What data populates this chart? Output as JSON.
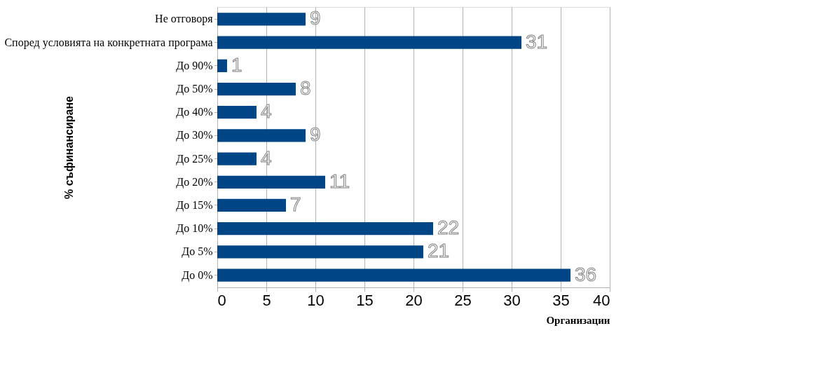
{
  "chart_data": {
    "type": "bar",
    "orientation": "horizontal",
    "xlabel": "Организации",
    "ylabel": "% съфинансиране",
    "categories": [
      "Не отговоря",
      "Според условията на конкретната програма",
      "До 90%",
      "До 50%",
      "До 40%",
      "До 30%",
      "До 25%",
      "До 20%",
      "До 15%",
      "До 10%",
      "До 5%",
      "До 0%"
    ],
    "values": [
      9,
      31,
      1,
      8,
      4,
      9,
      4,
      11,
      7,
      22,
      21,
      36
    ],
    "color": "#004586",
    "xlim": [
      0,
      40
    ],
    "xticks": [
      0,
      5,
      10,
      15,
      20,
      25,
      30,
      35,
      40
    ],
    "grid": "x",
    "data_labels": true
  }
}
